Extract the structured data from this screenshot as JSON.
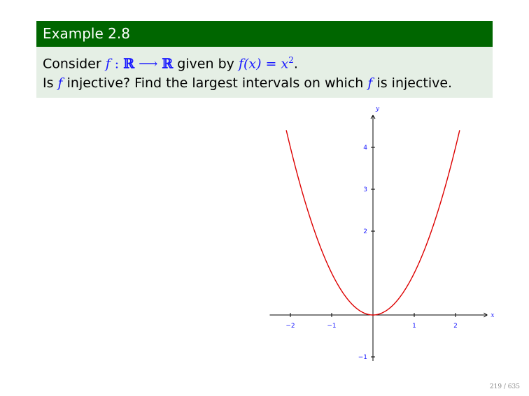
{
  "block": {
    "title": "Example 2.8",
    "line1": {
      "prefix": "Consider ",
      "f": "f",
      "colon": " : ",
      "R1": "ℝ",
      "arrow": " ⟶ ",
      "R2": "ℝ",
      "mid": " given by ",
      "fx": "f(x) = x",
      "exp": "2",
      "end": "."
    },
    "line2": {
      "a": "Is ",
      "f1": "f",
      "b": " injective? Find the largest intervals on which ",
      "f2": "f",
      "c": " is injective."
    }
  },
  "chart_data": {
    "type": "line",
    "function": "x^2",
    "series": [
      {
        "color": "#dd0000",
        "x": [
          -2.1,
          -1.8,
          -1.5,
          -1.2,
          -1.0,
          -0.8,
          -0.6,
          -0.4,
          -0.2,
          0,
          0.2,
          0.4,
          0.6,
          0.8,
          1.0,
          1.2,
          1.5,
          1.8,
          2.1
        ],
        "y": [
          4.41,
          3.24,
          2.25,
          1.44,
          1.0,
          0.64,
          0.36,
          0.16,
          0.04,
          0,
          0.04,
          0.16,
          0.36,
          0.64,
          1.0,
          1.44,
          2.25,
          3.24,
          4.41
        ]
      }
    ],
    "xlabel": "x",
    "ylabel": "y",
    "xlim": [
      -2.5,
      2.6
    ],
    "ylim": [
      -1.1,
      4.6
    ],
    "xticks": [
      "−2",
      "−1",
      "1",
      "2"
    ],
    "yticks": [
      "−1",
      "2",
      "3",
      "4"
    ],
    "grid": false
  },
  "page_number": "219 / 635"
}
